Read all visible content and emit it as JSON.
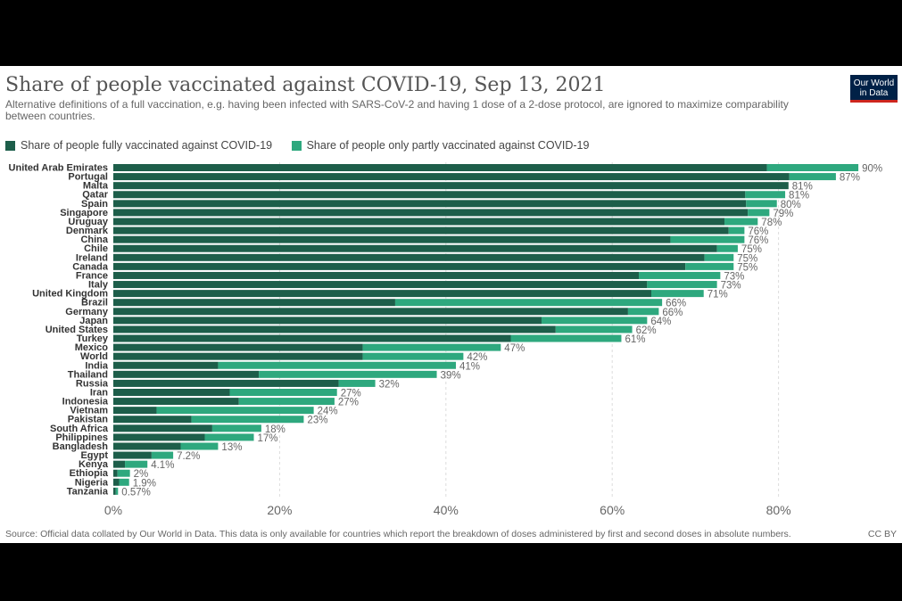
{
  "header": {
    "title": "Share of people vaccinated against COVID-19, Sep 13, 2021",
    "subtitle": "Alternative definitions of a full vaccination, e.g. having been infected with SARS-CoV-2 and having 1 dose of a 2-dose protocol, are ignored to maximize comparability between countries.",
    "logo_line1": "Our World",
    "logo_line2": "in Data"
  },
  "footer": {
    "source": "Source: Official data collated by Our World in Data. This data is only available for countries which report the breakdown of doses administered by first and second doses in absolute numbers.",
    "license": "CC BY"
  },
  "colors": {
    "fully": "#1d5e4a",
    "partly": "#2ea87e",
    "logo_bg": "#002147",
    "logo_accent": "#ce261e"
  },
  "chart_data": {
    "type": "bar",
    "orientation": "horizontal",
    "stacked": true,
    "title": "Share of people vaccinated against COVID-19, Sep 13, 2021",
    "xlim": [
      0,
      90
    ],
    "x_ticks": [
      "0%",
      "20%",
      "40%",
      "60%",
      "80%"
    ],
    "x_tick_values": [
      0,
      20,
      40,
      60,
      80
    ],
    "grid": "vertical",
    "legend_position": "top-left",
    "series": [
      {
        "name": "Share of people fully vaccinated against COVID-19",
        "color": "#1d5e4a"
      },
      {
        "name": "Share of people only partly vaccinated against COVID-19",
        "color": "#2ea87e"
      }
    ],
    "categories": [
      "United Arab Emirates",
      "Portugal",
      "Malta",
      "Qatar",
      "Spain",
      "Singapore",
      "Uruguay",
      "Denmark",
      "China",
      "Chile",
      "Ireland",
      "Canada",
      "France",
      "Italy",
      "United Kingdom",
      "Brazil",
      "Germany",
      "Japan",
      "United States",
      "Turkey",
      "Mexico",
      "World",
      "India",
      "Thailand",
      "Russia",
      "Iran",
      "Indonesia",
      "Vietnam",
      "Pakistan",
      "South Africa",
      "Philippines",
      "Bangladesh",
      "Egypt",
      "Kenya",
      "Ethiopia",
      "Nigeria",
      "Tanzania"
    ],
    "fully": [
      78.6,
      81.3,
      81.2,
      76.0,
      76.1,
      76.3,
      73.5,
      74.0,
      67.0,
      72.6,
      71.1,
      68.8,
      63.2,
      64.2,
      64.7,
      33.9,
      61.9,
      51.5,
      53.2,
      47.8,
      30.0,
      30.0,
      12.6,
      17.5,
      27.1,
      14.0,
      15.1,
      5.2,
      9.4,
      11.9,
      11.0,
      8.1,
      4.6,
      1.4,
      0.5,
      0.7,
      0.3
    ],
    "totals": [
      89.6,
      86.9,
      81.2,
      80.8,
      79.8,
      78.9,
      77.5,
      75.9,
      75.9,
      75.1,
      74.6,
      74.6,
      73.0,
      72.6,
      71.0,
      66.0,
      65.6,
      64.2,
      62.4,
      61.1,
      46.6,
      42.1,
      41.2,
      38.9,
      31.5,
      26.9,
      26.6,
      24.1,
      22.9,
      17.8,
      16.9,
      12.6,
      7.2,
      4.1,
      2.0,
      1.9,
      0.57
    ],
    "value_labels": [
      "90%",
      "87%",
      "81%",
      "81%",
      "80%",
      "79%",
      "78%",
      "76%",
      "76%",
      "75%",
      "75%",
      "75%",
      "73%",
      "73%",
      "71%",
      "66%",
      "66%",
      "64%",
      "62%",
      "61%",
      "47%",
      "42%",
      "41%",
      "39%",
      "32%",
      "27%",
      "27%",
      "24%",
      "23%",
      "18%",
      "17%",
      "13%",
      "7.2%",
      "4.1%",
      "2%",
      "1.9%",
      "0.57%"
    ]
  }
}
